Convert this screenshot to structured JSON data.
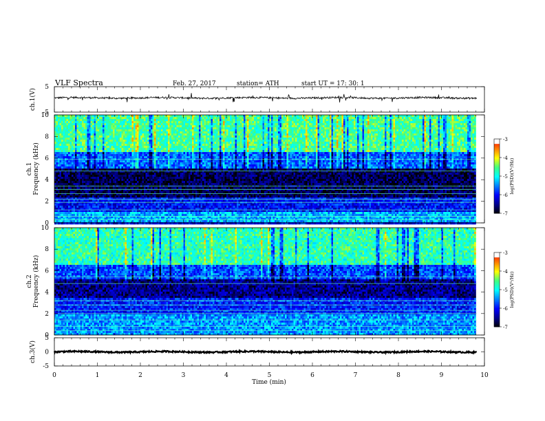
{
  "header": {
    "title": "VLF  Spectra",
    "date": "Feb. 27, 2017",
    "station": "station= ATH",
    "start": "start  UT  =    17: 30: 1"
  },
  "chart_data": [
    {
      "type": "line",
      "name": "ch1-waveform",
      "ylabel": "ch.1(V)",
      "ylim": [
        -5,
        5
      ],
      "yticks": [
        "5",
        "-5"
      ],
      "xlim": [
        0,
        10
      ],
      "data_xmax": 9.82,
      "mean_level": 0.6,
      "noise_amplitude": 0.35,
      "spike_amplitude": 1.8
    },
    {
      "type": "heatmap",
      "name": "ch1-spectrogram",
      "ylabel": "ch.1\nFrequency  (kHz)",
      "ylim": [
        0,
        10
      ],
      "yticks": [
        "0",
        "2",
        "4",
        "6",
        "8",
        "10"
      ],
      "xlim": [
        0,
        10
      ],
      "data_xmax": 9.82,
      "colorbar": {
        "label": "log(PSD)(V²/Hz)",
        "range": [
          -7,
          -3
        ],
        "ticks": [
          "-3",
          "-4",
          "-5",
          "-6",
          "-7"
        ]
      },
      "bands_khz": [
        {
          "from": 0,
          "to": 1,
          "level": -5.3
        },
        {
          "from": 1,
          "to": 2.4,
          "level": -6.0
        },
        {
          "from": 2.4,
          "to": 5.0,
          "level": -6.7
        },
        {
          "from": 5.0,
          "to": 6.5,
          "level": -5.6
        },
        {
          "from": 6.5,
          "to": 10,
          "level": -4.6
        }
      ],
      "lines_khz": [
        0.3,
        0.6,
        1.2,
        1.9,
        2.2,
        2.7,
        3.1,
        3.4,
        4.8,
        5.9
      ]
    },
    {
      "type": "heatmap",
      "name": "ch2-spectrogram",
      "ylabel": "ch.2\nFrequency  (kHz)",
      "ylim": [
        0,
        10
      ],
      "yticks": [
        "0",
        "2",
        "4",
        "6",
        "8",
        "10"
      ],
      "xlim": [
        0,
        10
      ],
      "data_xmax": 9.82,
      "colorbar": {
        "label": "log(PSD)(V²/Hz)",
        "range": [
          -7,
          -3
        ],
        "ticks": [
          "-3",
          "-4",
          "-5",
          "-6",
          "-7"
        ]
      },
      "bands_khz": [
        {
          "from": 0,
          "to": 2.0,
          "level": -5.4
        },
        {
          "from": 2.0,
          "to": 3.4,
          "level": -5.9
        },
        {
          "from": 3.4,
          "to": 5.2,
          "level": -6.5
        },
        {
          "from": 5.2,
          "to": 6.6,
          "level": -5.7
        },
        {
          "from": 6.6,
          "to": 10,
          "level": -4.7
        }
      ],
      "lines_khz": [
        0.4,
        0.8,
        1.4,
        2.0,
        2.3,
        2.8,
        3.2,
        4.8,
        5.4
      ]
    },
    {
      "type": "line",
      "name": "ch3-waveform",
      "ylabel": "ch.3(V)",
      "ylim": [
        -5,
        5
      ],
      "yticks": [
        "5",
        "0",
        "-5"
      ],
      "xlim": [
        0,
        10
      ],
      "data_xmax": 9.82,
      "mean_level": 0.0,
      "noise_amplitude": 0.25
    }
  ],
  "xaxis": {
    "label": "Time  (min)",
    "ticks": [
      "0",
      "1",
      "2",
      "3",
      "4",
      "5",
      "6",
      "7",
      "8",
      "9",
      "10"
    ]
  },
  "colors": {
    "colormap": [
      "#000000",
      "#00008c",
      "#0000ff",
      "#0080ff",
      "#00ffff",
      "#40ff80",
      "#ffff00",
      "#ff8000",
      "#ff0000",
      "#ffffff"
    ]
  }
}
